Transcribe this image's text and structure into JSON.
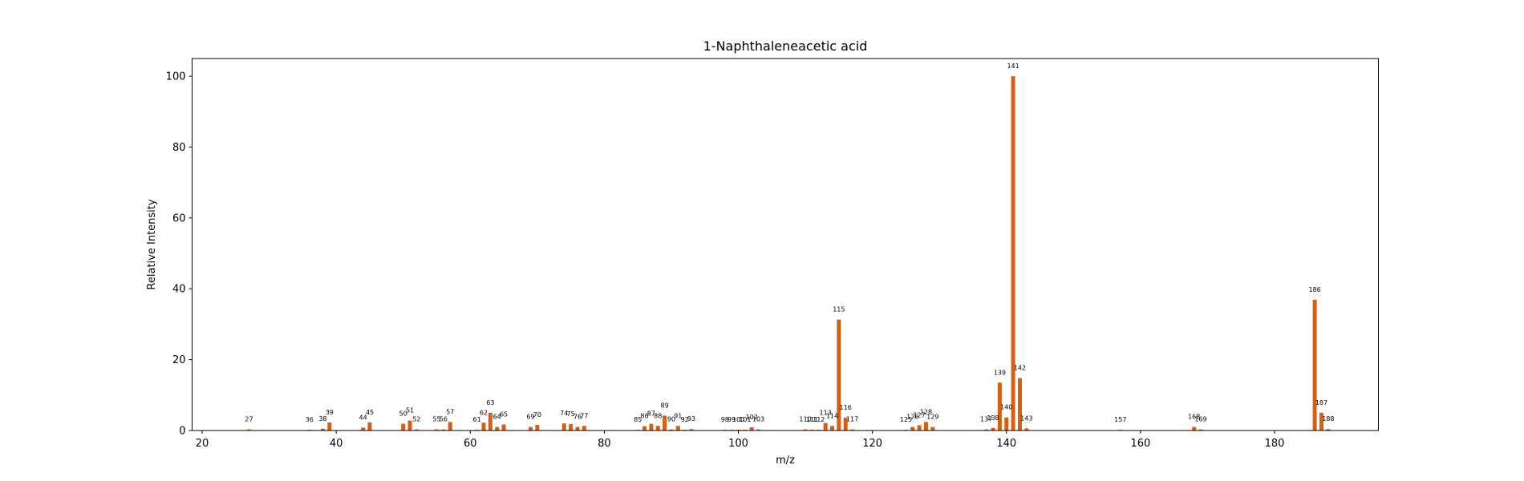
{
  "chart_data": {
    "type": "bar",
    "title": "1-Naphthaleneacetic acid",
    "xlabel": "m/z",
    "ylabel": "Relative Intensity",
    "xlim": [
      18.5,
      195.5
    ],
    "ylim": [
      0,
      105
    ],
    "xticks": [
      20,
      40,
      60,
      80,
      100,
      120,
      140,
      160,
      180
    ],
    "yticks": [
      0,
      20,
      40,
      60,
      80,
      100
    ],
    "grid": false,
    "bar_color": "#d95f0e",
    "peaks": [
      {
        "mz": 27,
        "intensity": 0.3
      },
      {
        "mz": 36,
        "intensity": 0.2
      },
      {
        "mz": 38,
        "intensity": 0.5
      },
      {
        "mz": 39,
        "intensity": 2.3
      },
      {
        "mz": 44,
        "intensity": 0.8
      },
      {
        "mz": 45,
        "intensity": 2.3
      },
      {
        "mz": 50,
        "intensity": 1.9
      },
      {
        "mz": 51,
        "intensity": 2.8
      },
      {
        "mz": 52,
        "intensity": 0.3
      },
      {
        "mz": 55,
        "intensity": 0.3
      },
      {
        "mz": 56,
        "intensity": 0.3
      },
      {
        "mz": 57,
        "intensity": 2.4
      },
      {
        "mz": 61,
        "intensity": 0.2
      },
      {
        "mz": 62,
        "intensity": 2.2
      },
      {
        "mz": 63,
        "intensity": 5.0
      },
      {
        "mz": 64,
        "intensity": 1.0
      },
      {
        "mz": 65,
        "intensity": 1.7
      },
      {
        "mz": 69,
        "intensity": 1.0
      },
      {
        "mz": 70,
        "intensity": 1.6
      },
      {
        "mz": 74,
        "intensity": 2.0
      },
      {
        "mz": 75,
        "intensity": 1.8
      },
      {
        "mz": 76,
        "intensity": 1.0
      },
      {
        "mz": 77,
        "intensity": 1.3
      },
      {
        "mz": 85,
        "intensity": 0.2
      },
      {
        "mz": 86,
        "intensity": 1.2
      },
      {
        "mz": 87,
        "intensity": 1.9
      },
      {
        "mz": 88,
        "intensity": 1.3
      },
      {
        "mz": 89,
        "intensity": 4.2
      },
      {
        "mz": 90,
        "intensity": 0.3
      },
      {
        "mz": 91,
        "intensity": 1.3
      },
      {
        "mz": 92,
        "intensity": 0.2
      },
      {
        "mz": 93,
        "intensity": 0.4
      },
      {
        "mz": 98,
        "intensity": 0.2
      },
      {
        "mz": 99,
        "intensity": 0.2
      },
      {
        "mz": 100,
        "intensity": 0.2
      },
      {
        "mz": 101,
        "intensity": 0.2
      },
      {
        "mz": 102,
        "intensity": 0.9
      },
      {
        "mz": 103,
        "intensity": 0.3
      },
      {
        "mz": 110,
        "intensity": 0.3
      },
      {
        "mz": 111,
        "intensity": 0.2
      },
      {
        "mz": 112,
        "intensity": 0.2
      },
      {
        "mz": 113,
        "intensity": 2.1
      },
      {
        "mz": 114,
        "intensity": 1.3
      },
      {
        "mz": 115,
        "intensity": 31.3
      },
      {
        "mz": 116,
        "intensity": 3.6
      },
      {
        "mz": 117,
        "intensity": 0.3
      },
      {
        "mz": 125,
        "intensity": 0.2
      },
      {
        "mz": 126,
        "intensity": 1.0
      },
      {
        "mz": 127,
        "intensity": 1.5
      },
      {
        "mz": 128,
        "intensity": 2.4
      },
      {
        "mz": 129,
        "intensity": 1.0
      },
      {
        "mz": 137,
        "intensity": 0.3
      },
      {
        "mz": 138,
        "intensity": 0.7
      },
      {
        "mz": 139,
        "intensity": 13.5
      },
      {
        "mz": 140,
        "intensity": 3.7
      },
      {
        "mz": 141,
        "intensity": 100
      },
      {
        "mz": 142,
        "intensity": 14.8
      },
      {
        "mz": 143,
        "intensity": 0.6
      },
      {
        "mz": 157,
        "intensity": 0.2
      },
      {
        "mz": 168,
        "intensity": 1.0
      },
      {
        "mz": 169,
        "intensity": 0.3
      },
      {
        "mz": 186,
        "intensity": 36.9
      },
      {
        "mz": 187,
        "intensity": 5.0
      },
      {
        "mz": 188,
        "intensity": 0.4
      }
    ]
  }
}
